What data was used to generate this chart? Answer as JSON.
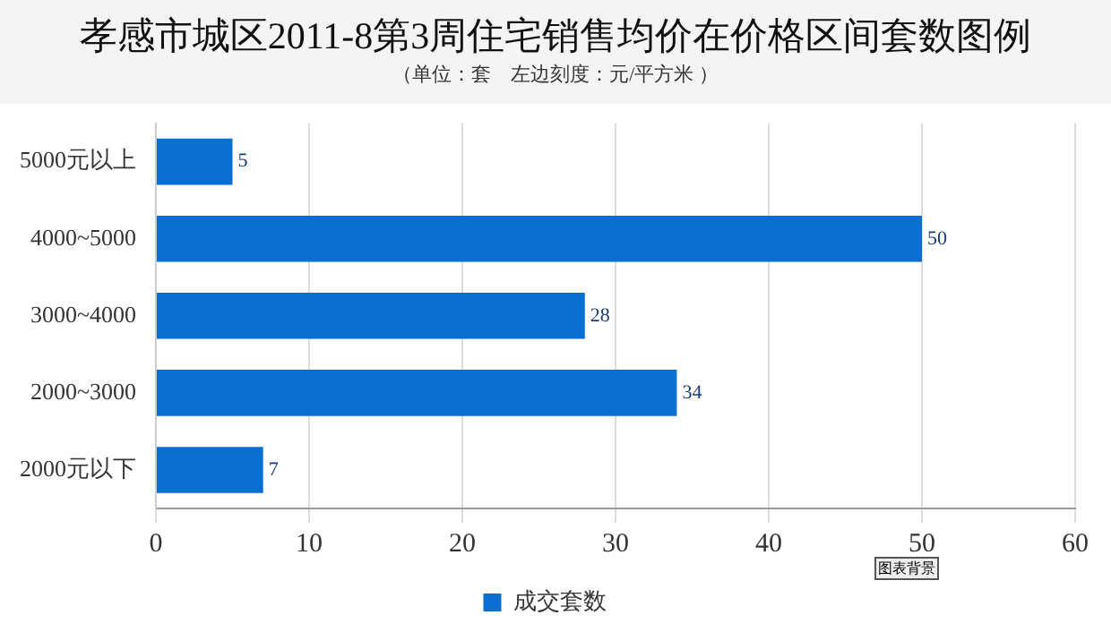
{
  "chart_data": {
    "type": "bar",
    "orientation": "horizontal",
    "title": "孝感市城区2011-8第3周住宅销售均价在价格区间套数图例",
    "subtitle": "（单位：套　左边刻度：元/平方米 ）",
    "categories": [
      "5000元以上",
      "4000~5000",
      "3000~4000",
      "2000~3000",
      "2000元以下"
    ],
    "series": [
      {
        "name": "成交套数",
        "color": "#0a6fd0",
        "values": [
          5,
          50,
          28,
          34,
          7
        ]
      }
    ],
    "xlim": [
      0,
      60
    ],
    "xticks": [
      0,
      10,
      20,
      30,
      40,
      50,
      60
    ],
    "grid": "x",
    "legend": "bottom",
    "data_labels": true,
    "annotations": [
      "图表背景"
    ]
  }
}
